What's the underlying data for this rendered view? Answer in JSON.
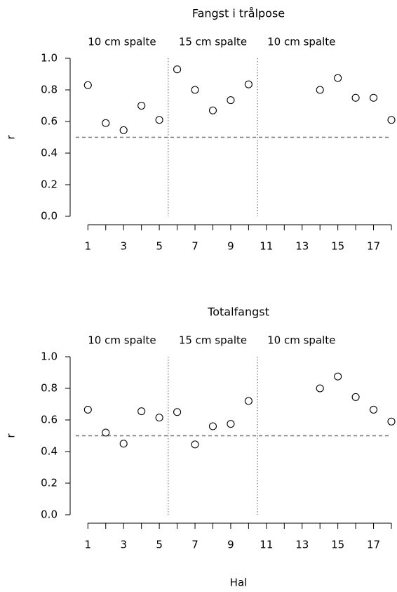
{
  "chart_data": [
    {
      "type": "scatter",
      "title": "Fangst i trålpose",
      "ylabel": "r",
      "sections": [
        "10 cm spalte",
        "15 cm spalte",
        "10 cm spalte"
      ],
      "dividers": [
        5.5,
        10.5
      ],
      "hline": 0.5,
      "x": [
        1,
        2,
        3,
        4,
        5,
        6,
        7,
        8,
        9,
        10,
        14,
        15,
        16,
        17,
        18
      ],
      "values": [
        0.83,
        0.59,
        0.545,
        0.7,
        0.61,
        0.93,
        0.8,
        0.67,
        0.735,
        0.835,
        0.8,
        0.875,
        0.75,
        0.75,
        0.61
      ],
      "xlim": [
        0.32,
        18
      ],
      "ylim": [
        0,
        1
      ],
      "xticks": [
        1,
        3,
        5,
        7,
        9,
        11,
        13,
        15,
        17
      ],
      "minor_xticks": [
        2,
        4,
        6,
        8,
        10,
        12,
        14,
        16,
        18
      ],
      "yticks": [
        {
          "value": 0,
          "label": "0.0"
        },
        0.2,
        0.4,
        0.6,
        0.8,
        {
          "value": 1,
          "label": "1.0"
        }
      ]
    },
    {
      "type": "scatter",
      "title": "Totalfangst",
      "ylabel": "r",
      "xlabel": "Hal",
      "sections": [
        "10 cm spalte",
        "15 cm spalte",
        "10 cm spalte"
      ],
      "dividers": [
        5.5,
        10.5
      ],
      "hline": 0.5,
      "x": [
        1,
        2,
        3,
        4,
        5,
        6,
        7,
        8,
        9,
        10,
        14,
        15,
        16,
        17,
        18
      ],
      "values": [
        0.665,
        0.52,
        0.45,
        0.655,
        0.615,
        0.65,
        0.445,
        0.56,
        0.575,
        0.72,
        0.8,
        0.875,
        0.745,
        0.665,
        0.59
      ],
      "xlim": [
        0.32,
        18
      ],
      "ylim": [
        0,
        1
      ],
      "xticks": [
        1,
        3,
        5,
        7,
        9,
        11,
        13,
        15,
        17
      ],
      "minor_xticks": [
        2,
        4,
        6,
        8,
        10,
        12,
        14,
        16,
        18
      ],
      "yticks": [
        {
          "value": 0,
          "label": "0.0"
        },
        0.2,
        0.4,
        0.6,
        0.8,
        {
          "value": 1,
          "label": "1.0"
        }
      ]
    }
  ]
}
